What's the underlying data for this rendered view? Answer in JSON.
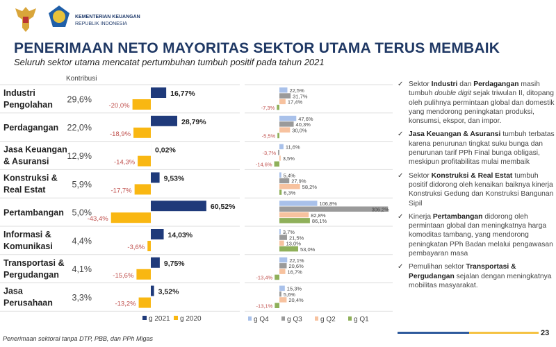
{
  "header": {
    "org_name": "KEMENTERIAN KEUANGAN",
    "org_sub": "REPUBLIK INDONESIA",
    "title": "PENERIMAAN NETO MAYORITAS SEKTOR UTAMA TERUS MEMBAIK",
    "subtitle": "Seluruh sektor utama mencatat pertumbuhan tumbuh positif pada tahun 2021"
  },
  "colors": {
    "g2021": "#1f3a7a",
    "g2020": "#f9b712",
    "q4": "#a9c1ea",
    "q3": "#9a9a9a",
    "q2": "#f7c29f",
    "q1": "#8fb05a",
    "negative_label": "#c0504d",
    "title": "#1f3864"
  },
  "chart_data": [
    {
      "type": "bar",
      "orientation": "horizontal",
      "column_header": "Kontribusi",
      "categories": [
        "Industri Pengolahan",
        "Perdagangan",
        "Jasa Keuangan & Asuransi",
        "Konstruksi & Real Estat",
        "Pertambangan",
        "Informasi & Komunikasi",
        "Transportasi & Pergudangan",
        "Jasa Perusahaan"
      ],
      "category_lines": [
        [
          "Industri",
          "Pengolahan"
        ],
        [
          "Perdagangan"
        ],
        [
          "Jasa Keuangan",
          "& Asuransi"
        ],
        [
          "Konstruksi &",
          "Real Estat"
        ],
        [
          "Pertambangan"
        ],
        [
          "Informasi &",
          "Komunikasi"
        ],
        [
          "Transportasi &",
          "Pergudangan"
        ],
        [
          "Jasa",
          "Perusahaan"
        ]
      ],
      "kontribusi": [
        "29,6%",
        "22,0%",
        "12,9%",
        "5,9%",
        "5,0%",
        "4,4%",
        "4,1%",
        "3,3%"
      ],
      "series": [
        {
          "name": "g 2021",
          "values": [
            16.77,
            28.79,
            0.02,
            9.53,
            60.52,
            14.03,
            9.75,
            3.52
          ],
          "labels": [
            "16,77%",
            "28,79%",
            "0,02%",
            "9,53%",
            "60,52%",
            "14,03%",
            "9,75%",
            "3,52%"
          ]
        },
        {
          "name": "g 2020",
          "values": [
            -20.0,
            -18.9,
            -14.3,
            -17.7,
            -43.4,
            -3.6,
            -15.6,
            -13.2
          ],
          "labels": [
            "-20,0%",
            "-18,9%",
            "-14,3%",
            "-17,7%",
            "-43,4%",
            "-3,6%",
            "-15,6%",
            "-13,2%"
          ]
        }
      ],
      "legend_position": "bottom"
    },
    {
      "type": "bar",
      "orientation": "horizontal",
      "categories": [
        "Industri Pengolahan",
        "Perdagangan",
        "Jasa Keuangan & Asuransi",
        "Konstruksi & Real Estat",
        "Pertambangan",
        "Informasi & Komunikasi",
        "Transportasi & Pergudangan",
        "Jasa Perusahaan"
      ],
      "series": [
        {
          "name": "g Q4",
          "values": [
            22.5,
            47.6,
            11.6,
            5.4,
            106.8,
            3.7,
            22.1,
            15.3
          ],
          "labels": [
            "22,5%",
            "47,6%",
            "11,6%",
            "5,4%",
            "106,8%",
            "3,7%",
            "22,1%",
            "15,3%"
          ]
        },
        {
          "name": "g Q3",
          "values": [
            31.7,
            40.3,
            -3.7,
            27.9,
            306.2,
            21.5,
            20.6,
            5.6
          ],
          "labels": [
            "31,7%",
            "40,3%",
            "-3,7%",
            "27,9%",
            "306,2%",
            "21,5%",
            "20,6%",
            "5,6%"
          ]
        },
        {
          "name": "g Q2",
          "values": [
            17.4,
            30.0,
            3.5,
            58.2,
            82.8,
            13.0,
            16.7,
            20.4
          ],
          "labels": [
            "17,4%",
            "30,0%",
            "3,5%",
            "58,2%",
            "82,8%",
            "13,0%",
            "16,7%",
            "20,4%"
          ]
        },
        {
          "name": "g Q1",
          "values": [
            -7.3,
            -5.5,
            -14.6,
            6.3,
            86.1,
            53.0,
            -13.4,
            -13.1
          ],
          "labels": [
            "-7,3%",
            "-5,5%",
            "-14,6%",
            "6,3%",
            "86,1%",
            "53,0%",
            "-13,4%",
            "-13,1%"
          ]
        }
      ],
      "legend_position": "bottom"
    }
  ],
  "bullets": [
    [
      {
        "t": "Sektor "
      },
      {
        "t": "Industri",
        "b": true
      },
      {
        "t": " dan "
      },
      {
        "t": "Perdagangan",
        "b": true
      },
      {
        "t": " masih tumbuh "
      },
      {
        "t": "double digit",
        "i": true
      },
      {
        "t": " sejak triwulan II, ditopang oleh pulihnya permintaan global dan domestik yang mendorong peningkatan produksi, konsumsi, ekspor, dan impor."
      }
    ],
    [
      {
        "t": "Jasa Keuangan & Asuransi",
        "b": true
      },
      {
        "t": " tumbuh terbatas karena penurunan tingkat suku bunga dan penurunan tarif PPh Final bunga obligasi, meskipun profitabilitas mulai membaik"
      }
    ],
    [
      {
        "t": "Sektor "
      },
      {
        "t": "Konstruksi & Real Estat",
        "b": true
      },
      {
        "t": " tumbuh positif didorong oleh kenaikan baiknya kinerja Konstruksi Gedung dan Konstruksi Bangunan Sipil"
      }
    ],
    [
      {
        "t": "Kinerja "
      },
      {
        "t": "Pertambangan",
        "b": true
      },
      {
        "t": " didorong oleh permintaan global dan meningkatnya harga komoditas tambang, yang mendorong peningkatan PPh Badan melalui pengawasan pembayaran masa"
      }
    ],
    [
      {
        "t": "Pemulihan sektor "
      },
      {
        "t": "Transportasi & Pergudangan",
        "b": true
      },
      {
        "t": " sejalan dengan meningkatnya mobilitas masyarakat."
      }
    ]
  ],
  "footer": {
    "note": "Penerimaan sektoral tanpa DTP, PBB, dan PPh Migas",
    "page": "23"
  }
}
